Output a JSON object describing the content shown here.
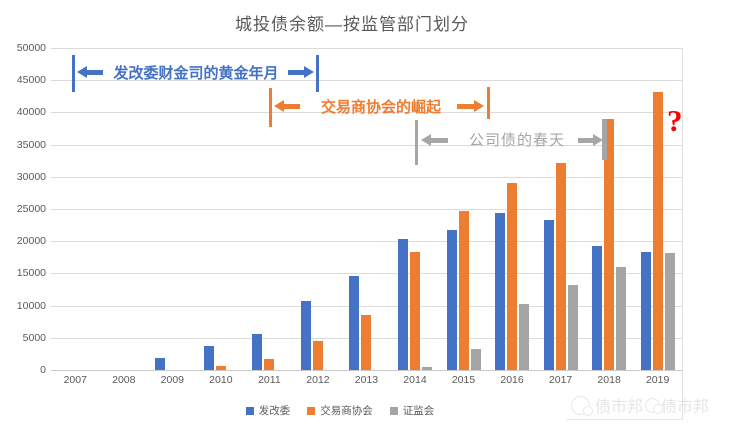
{
  "chart_data": {
    "type": "bar",
    "title": "城投债余额—按监管部门划分",
    "categories": [
      "2007",
      "2008",
      "2009",
      "2010",
      "2011",
      "2012",
      "2013",
      "2014",
      "2015",
      "2016",
      "2017",
      "2018",
      "2019"
    ],
    "series": [
      {
        "name": "发改委",
        "color": "#4472C4",
        "values": [
          0,
          0,
          1900,
          3700,
          5600,
          10700,
          14600,
          20300,
          21700,
          24400,
          23300,
          19300,
          18300
        ]
      },
      {
        "name": "交易商协会",
        "color": "#ED7D31",
        "values": [
          0,
          0,
          0,
          600,
          1700,
          4500,
          8600,
          18300,
          24700,
          29000,
          32200,
          39000,
          43200
        ]
      },
      {
        "name": "证监会",
        "color": "#A5A5A5",
        "values": [
          0,
          0,
          0,
          0,
          0,
          0,
          0,
          400,
          3200,
          10200,
          13200,
          16000,
          18100
        ]
      }
    ],
    "ylim": [
      0,
      50000
    ],
    "yticks": [
      0,
      5000,
      10000,
      15000,
      20000,
      25000,
      30000,
      35000,
      40000,
      45000,
      50000
    ],
    "grid": true,
    "legend_position": "bottom"
  },
  "annotations": {
    "ndrc": {
      "label": "发改委财金司的黄金年月",
      "color": "#4472C4"
    },
    "nafmii": {
      "label": "交易商协会的崛起",
      "color": "#ED7D31"
    },
    "csrc": {
      "label": "公司债的春天",
      "color": "#A6A6A6"
    },
    "question": {
      "label": "?",
      "color": "#FF0000"
    }
  },
  "watermark": {
    "text_primary": "债市邦",
    "text_secondary": "债市邦"
  }
}
